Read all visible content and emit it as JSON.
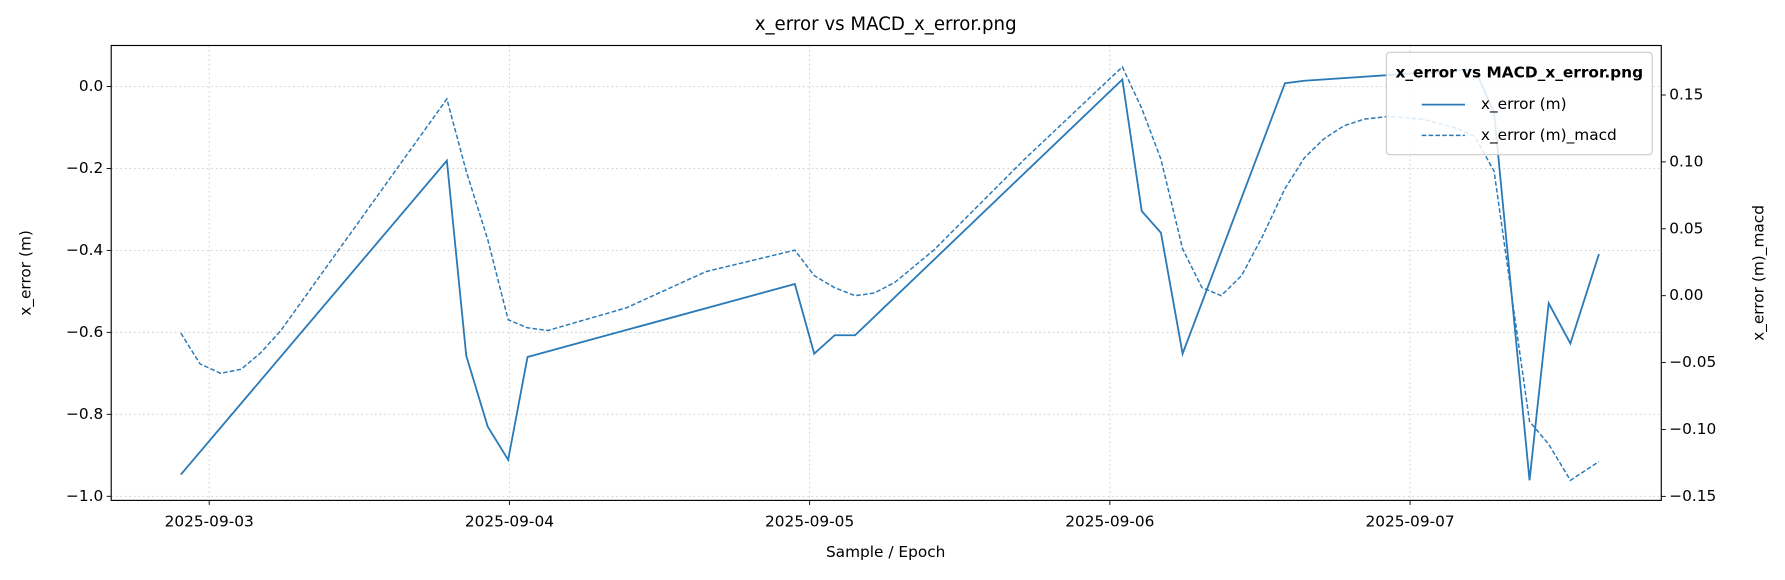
{
  "chart_data": {
    "type": "line",
    "title": "x_error vs MACD_x_error.png",
    "x_label": "Sample / Epoch",
    "y_label": "x_error (m)",
    "y2_label": "x_error (m)_macd",
    "legend_title": "x_error vs MACD_x_error.png",
    "legend": "upper right",
    "grid": true,
    "xlim": [
      "2025-09-02T16:10",
      "2025-09-07T20:05"
    ],
    "xticks": [
      "2025-09-03",
      "2025-09-04",
      "2025-09-05",
      "2025-09-06",
      "2025-09-07"
    ],
    "ylim": [
      -1.01,
      0.1
    ],
    "yticks": [
      {
        "value": -1.0,
        "label": "−1.0"
      },
      {
        "value": -0.8,
        "label": "−0.8"
      },
      {
        "value": -0.6,
        "label": "−0.6"
      },
      {
        "value": -0.4,
        "label": "−0.4"
      },
      {
        "value": -0.2,
        "label": "−0.2"
      },
      {
        "value": 0.0,
        "label": "0.0"
      }
    ],
    "y2lim": [
      -0.153,
      0.187
    ],
    "y2ticks": [
      {
        "value": -0.15,
        "label": "−0.15"
      },
      {
        "value": -0.1,
        "label": "−0.10"
      },
      {
        "value": -0.05,
        "label": "−0.05"
      },
      {
        "value": 0.0,
        "label": "0.00"
      },
      {
        "value": 0.05,
        "label": "0.05"
      },
      {
        "value": 0.1,
        "label": "0.10"
      },
      {
        "value": 0.15,
        "label": "0.15"
      }
    ],
    "series": [
      {
        "name": "x_error (m)",
        "color": "#2a7ab8",
        "dash": false,
        "x": [
          "2025-09-02T21:44",
          "2025-09-03T19:00",
          "2025-09-03T20:33",
          "2025-09-03T22:16",
          "2025-09-03T23:54",
          "2025-09-04T01:27",
          "2025-09-04T22:49",
          "2025-09-05T00:22",
          "2025-09-05T02:00",
          "2025-09-05T03:38",
          "2025-09-06T01:00",
          "2025-09-06T02:33",
          "2025-09-06T04:05",
          "2025-09-06T05:49",
          "2025-09-06T14:00",
          "2025-09-06T15:33",
          "2025-09-07T05:11",
          "2025-09-07T06:43",
          "2025-09-07T09:33",
          "2025-09-07T11:05",
          "2025-09-07T12:49",
          "2025-09-07T15:06"
        ],
        "values": [
          -0.947,
          -0.181,
          -0.657,
          -0.83,
          -0.911,
          -0.66,
          -0.482,
          -0.652,
          -0.607,
          -0.607,
          0.017,
          -0.304,
          -0.357,
          -0.652,
          0.008,
          0.014,
          0.042,
          -0.064,
          -0.961,
          -0.529,
          -0.627,
          -0.409
        ]
      },
      {
        "name": "x_error (m)_macd",
        "color": "#2a7ab8",
        "dash": true,
        "axis": "y2",
        "x": [
          "2025-09-02T21:44",
          "2025-09-02T23:16",
          "2025-09-03T00:55",
          "2025-09-03T02:33",
          "2025-09-03T04:05",
          "2025-09-03T05:44",
          "2025-09-03T19:00",
          "2025-09-03T20:33",
          "2025-09-03T22:16",
          "2025-09-03T23:54",
          "2025-09-04T01:27",
          "2025-09-04T03:05",
          "2025-09-04T09:22",
          "2025-09-04T15:43",
          "2025-09-04T22:49",
          "2025-09-05T00:22",
          "2025-09-05T02:00",
          "2025-09-05T03:38",
          "2025-09-05T05:11",
          "2025-09-05T06:49",
          "2025-09-05T09:55",
          "2025-09-05T17:11",
          "2025-09-06T01:00",
          "2025-09-06T02:33",
          "2025-09-06T04:05",
          "2025-09-06T05:49",
          "2025-09-06T07:22",
          "2025-09-06T08:54",
          "2025-09-06T10:32",
          "2025-09-06T12:11",
          "2025-09-06T14:00",
          "2025-09-06T15:33",
          "2025-09-06T17:05",
          "2025-09-06T18:43",
          "2025-09-06T20:21",
          "2025-09-06T22:16",
          "2025-09-07T01:00",
          "2025-09-07T03:44",
          "2025-09-07T05:11",
          "2025-09-07T06:43",
          "2025-09-07T09:33",
          "2025-09-07T11:05",
          "2025-09-07T12:49",
          "2025-09-07T15:06"
        ],
        "values": [
          -0.028,
          -0.051,
          -0.058,
          -0.055,
          -0.043,
          -0.026,
          0.147,
          0.093,
          0.042,
          -0.018,
          -0.024,
          -0.026,
          -0.009,
          0.018,
          0.034,
          0.015,
          0.006,
          0.0,
          0.002,
          0.01,
          0.034,
          0.102,
          0.171,
          0.14,
          0.102,
          0.035,
          0.006,
          0.0,
          0.015,
          0.044,
          0.08,
          0.103,
          0.117,
          0.127,
          0.132,
          0.134,
          0.132,
          0.125,
          0.119,
          0.093,
          -0.094,
          -0.111,
          -0.138,
          -0.124
        ]
      }
    ]
  }
}
